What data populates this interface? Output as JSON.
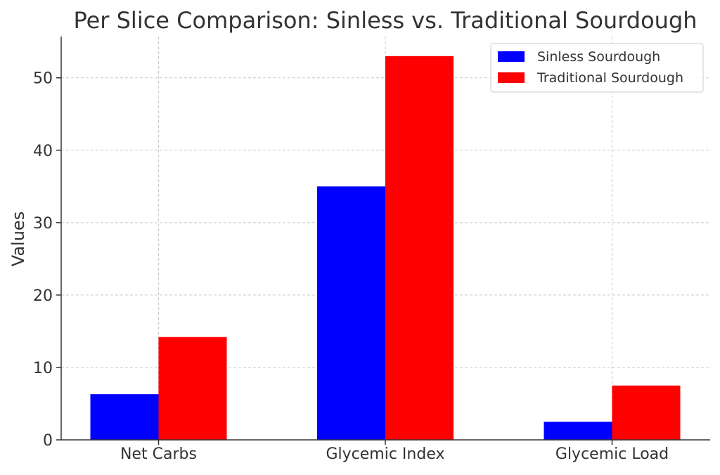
{
  "chart_data": {
    "type": "bar",
    "title": "Per Slice Comparison: Sinless vs. Traditional Sourdough",
    "xlabel": "",
    "ylabel": "Values",
    "categories": [
      "Net Carbs",
      "Glycemic Index",
      "Glycemic Load"
    ],
    "series": [
      {
        "name": "Sinless Sourdough",
        "values": [
          6.3,
          35,
          2.5
        ],
        "color": "#0000ff"
      },
      {
        "name": "Traditional Sourdough",
        "values": [
          14.2,
          53,
          7.5
        ],
        "color": "#ff0000"
      }
    ],
    "ylim": [
      0,
      55.7
    ],
    "yticks": [
      0,
      10,
      20,
      30,
      40,
      50
    ],
    "grid": true,
    "legend_position": "top-right"
  }
}
